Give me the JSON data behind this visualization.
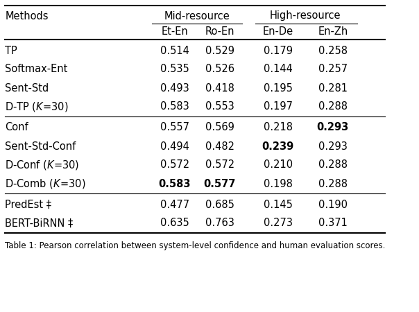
{
  "col_headers": [
    "Methods",
    "Et-En",
    "Ro-En",
    "En-De",
    "En-Zh"
  ],
  "group_headers": [
    {
      "label": "Mid-resource",
      "cols": [
        1,
        2
      ]
    },
    {
      "label": "High-resource",
      "cols": [
        3,
        4
      ]
    }
  ],
  "group1": [
    {
      "method": "TP",
      "vals": [
        "0.514",
        "0.529",
        "0.179",
        "0.258"
      ],
      "bold": []
    },
    {
      "method": "Softmax-Ent",
      "vals": [
        "0.535",
        "0.526",
        "0.144",
        "0.257"
      ],
      "bold": []
    },
    {
      "method": "Sent-Std",
      "vals": [
        "0.493",
        "0.418",
        "0.195",
        "0.281"
      ],
      "bold": []
    },
    {
      "method": "D-TP ($\\mathit{K}$=30)",
      "vals": [
        "0.583",
        "0.553",
        "0.197",
        "0.288"
      ],
      "bold": []
    }
  ],
  "group2": [
    {
      "method": "Conf",
      "vals": [
        "0.557",
        "0.569",
        "0.218",
        "0.293"
      ],
      "bold": [
        3
      ]
    },
    {
      "method": "Sent-Std-Conf",
      "vals": [
        "0.494",
        "0.482",
        "0.239",
        "0.293"
      ],
      "bold": [
        2
      ]
    },
    {
      "method": "D-Conf ($\\mathit{K}$=30)",
      "vals": [
        "0.572",
        "0.572",
        "0.210",
        "0.288"
      ],
      "bold": []
    },
    {
      "method": "D-Comb ($\\mathit{K}$=30)",
      "vals": [
        "0.583",
        "0.577",
        "0.198",
        "0.288"
      ],
      "bold": [
        0,
        1
      ]
    }
  ],
  "group3": [
    {
      "method": "PredEst ‡",
      "vals": [
        "0.477",
        "0.685",
        "0.145",
        "0.190"
      ],
      "bold": []
    },
    {
      "method": "BERT-BiRNN ‡",
      "vals": [
        "0.635",
        "0.763",
        "0.273",
        "0.371"
      ],
      "bold": []
    }
  ],
  "caption": "Table 1: Pearson correlation between system-level confidence and human evaluation scores.",
  "bg_color": "#ffffff",
  "font_size": 10.5,
  "caption_font_size": 8.5
}
